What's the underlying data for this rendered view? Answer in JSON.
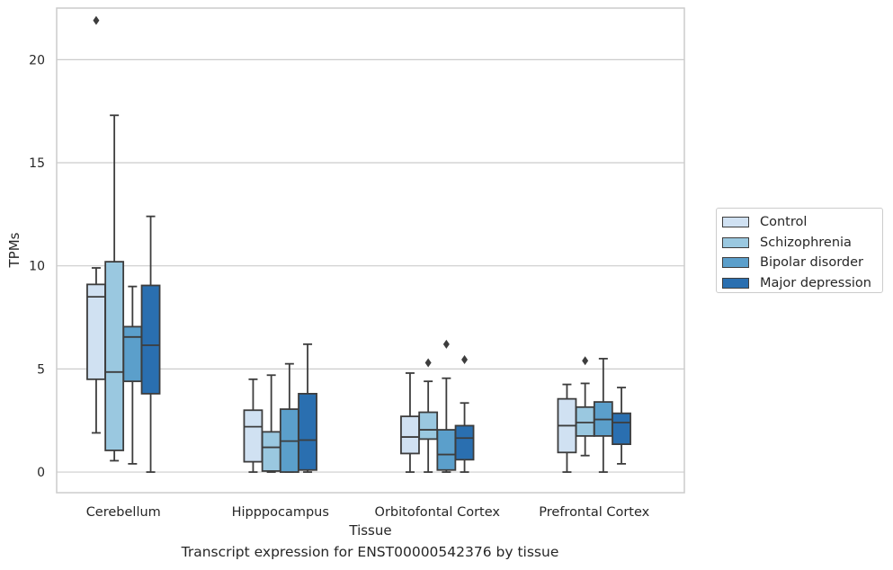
{
  "chart_data": {
    "type": "box",
    "xlabel": "Tissue",
    "ylabel": "TPMs",
    "caption": "Transcript expression for ENST00000542376 by tissue",
    "ylim": [
      -1,
      22.5
    ],
    "yticks": [
      0,
      5,
      10,
      15,
      20
    ],
    "grid": "horizontal",
    "legend_position": "right",
    "categories": [
      "Cerebellum",
      "Hipppocampus",
      "Orbitofontal Cortex",
      "Prefrontal Cortex"
    ],
    "series": [
      {
        "name": "Control",
        "color": "#d0e1f2",
        "boxes": [
          {
            "whislo": 1.9,
            "q1": 4.5,
            "med": 8.5,
            "q3": 9.1,
            "whishi": 9.9,
            "fliers": [
              21.9
            ]
          },
          {
            "whislo": 0.0,
            "q1": 0.5,
            "med": 2.2,
            "q3": 3.0,
            "whishi": 4.5,
            "fliers": []
          },
          {
            "whislo": 0.0,
            "q1": 0.9,
            "med": 1.7,
            "q3": 2.7,
            "whishi": 4.8,
            "fliers": []
          },
          {
            "whislo": 0.0,
            "q1": 0.95,
            "med": 2.25,
            "q3": 3.55,
            "whishi": 4.25,
            "fliers": []
          }
        ]
      },
      {
        "name": "Schizophrenia",
        "color": "#9ac8e0",
        "boxes": [
          {
            "whislo": 0.55,
            "q1": 1.05,
            "med": 4.85,
            "q3": 10.2,
            "whishi": 17.3,
            "fliers": []
          },
          {
            "whislo": 0.0,
            "q1": 0.05,
            "med": 1.2,
            "q3": 1.95,
            "whishi": 4.7,
            "fliers": []
          },
          {
            "whislo": 0.0,
            "q1": 1.6,
            "med": 2.05,
            "q3": 2.9,
            "whishi": 4.4,
            "fliers": [
              5.3
            ]
          },
          {
            "whislo": 0.8,
            "q1": 1.75,
            "med": 2.4,
            "q3": 3.15,
            "whishi": 4.3,
            "fliers": [
              5.4
            ]
          }
        ]
      },
      {
        "name": "Bipolar disorder",
        "color": "#5b9fcb",
        "boxes": [
          {
            "whislo": 0.4,
            "q1": 4.4,
            "med": 6.55,
            "q3": 7.05,
            "whishi": 9.0,
            "fliers": []
          },
          {
            "whislo": 0.0,
            "q1": 0.0,
            "med": 1.5,
            "q3": 3.05,
            "whishi": 5.25,
            "fliers": []
          },
          {
            "whislo": 0.0,
            "q1": 0.1,
            "med": 0.85,
            "q3": 2.05,
            "whishi": 4.55,
            "fliers": [
              6.2
            ]
          },
          {
            "whislo": 0.0,
            "q1": 1.75,
            "med": 2.55,
            "q3": 3.4,
            "whishi": 5.5,
            "fliers": []
          }
        ]
      },
      {
        "name": "Major depression",
        "color": "#2a6fb0",
        "boxes": [
          {
            "whislo": 0.0,
            "q1": 3.8,
            "med": 6.15,
            "q3": 9.05,
            "whishi": 12.4,
            "fliers": []
          },
          {
            "whislo": 0.0,
            "q1": 0.1,
            "med": 1.55,
            "q3": 3.8,
            "whishi": 6.2,
            "fliers": []
          },
          {
            "whislo": 0.0,
            "q1": 0.6,
            "med": 1.65,
            "q3": 2.25,
            "whishi": 3.35,
            "fliers": [
              5.45
            ]
          },
          {
            "whislo": 0.4,
            "q1": 1.35,
            "med": 2.4,
            "q3": 2.85,
            "whishi": 4.1,
            "fliers": []
          }
        ]
      }
    ]
  }
}
